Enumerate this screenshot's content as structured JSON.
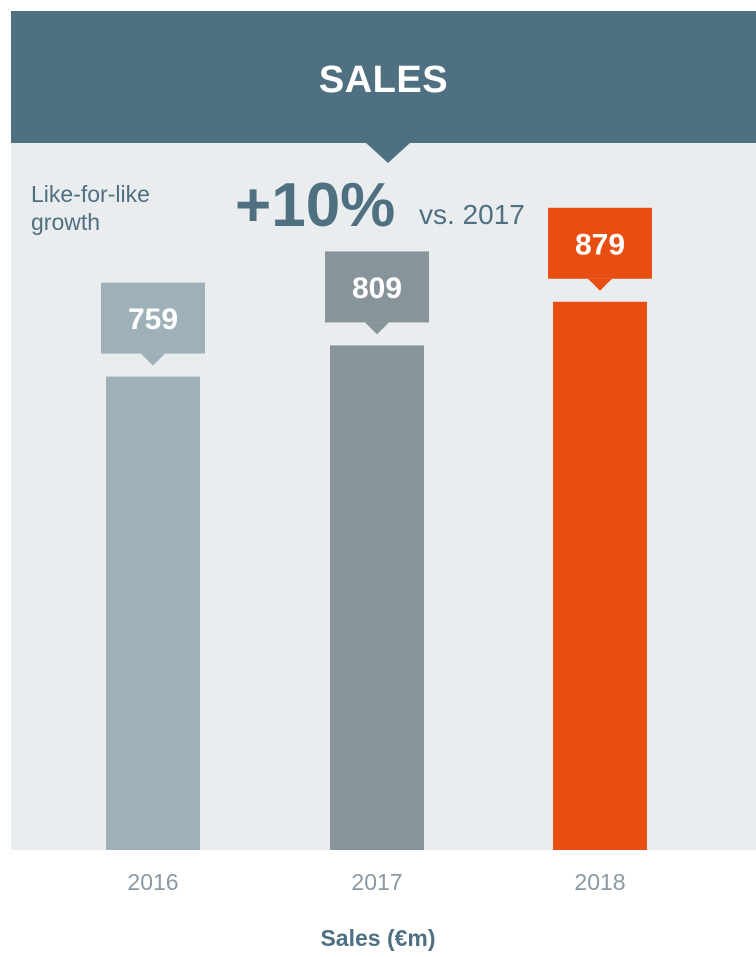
{
  "header": {
    "title": "SALES"
  },
  "growth": {
    "label": "Like-for-like growth",
    "value": "+10%",
    "comparison": "vs. 2017"
  },
  "colors": {
    "banner": "#4f7081",
    "panel": "#e9edef",
    "axis_text": "#8a99a3"
  },
  "chart_data": {
    "type": "bar",
    "title": "SALES",
    "categories": [
      "2016",
      "2017",
      "2018"
    ],
    "series": [
      {
        "values": [
          759,
          809,
          879
        ]
      }
    ],
    "data_labels": [
      "759",
      "809",
      "879"
    ],
    "bar_colors": [
      "#9eb0b8",
      "#879499",
      "#e84e11"
    ],
    "label_colors": [
      "#9eb0b8",
      "#879499",
      "#e84e11"
    ],
    "xlabel": "Sales (€m)",
    "ylabel": "",
    "grid": false,
    "legend": "none"
  }
}
